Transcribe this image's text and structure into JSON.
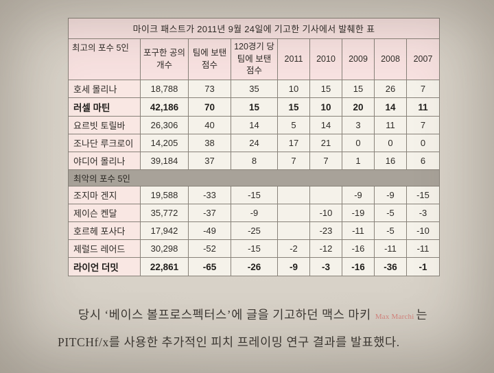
{
  "table": {
    "title": "마이크 패스트가 2011년 9월 24일에 기고한 기사에서 발췌한 표",
    "header": [
      "최고의 포수 5인",
      "포구한 공의 개수",
      "팀에 보탠 점수",
      "120경기 당 팀에 보탠 점수",
      "2011",
      "2010",
      "2009",
      "2008",
      "2007"
    ],
    "top_rows": [
      {
        "name": "호세 몰리나",
        "values": [
          "18,788",
          "73",
          "35",
          "10",
          "15",
          "15",
          "26",
          "7"
        ],
        "bold": false
      },
      {
        "name": "러셀 마틴",
        "values": [
          "42,186",
          "70",
          "15",
          "15",
          "10",
          "20",
          "14",
          "11"
        ],
        "bold": true
      },
      {
        "name": "요르빗 토릴바",
        "values": [
          "26,306",
          "40",
          "14",
          "5",
          "14",
          "3",
          "11",
          "7"
        ],
        "bold": false
      },
      {
        "name": "조나단 루크로이",
        "values": [
          "14,205",
          "38",
          "24",
          "17",
          "21",
          "0",
          "0",
          "0"
        ],
        "bold": false
      },
      {
        "name": "야디어 몰리나",
        "values": [
          "39,184",
          "37",
          "8",
          "7",
          "7",
          "1",
          "16",
          "6"
        ],
        "bold": false
      }
    ],
    "section_label": "최악의 포수 5인",
    "bottom_rows": [
      {
        "name": "조지마 겐지",
        "values": [
          "19,588",
          "-33",
          "-15",
          "",
          "",
          "-9",
          "-9",
          "-15"
        ],
        "bold": false
      },
      {
        "name": "제이슨 켄달",
        "values": [
          "35,772",
          "-37",
          "-9",
          "",
          "-10",
          "-19",
          "-5",
          "-3"
        ],
        "bold": false
      },
      {
        "name": "호르헤 포사다",
        "values": [
          "17,942",
          "-49",
          "-25",
          "",
          "-23",
          "-11",
          "-5",
          "-10"
        ],
        "bold": false
      },
      {
        "name": "제럴드 레어드",
        "values": [
          "30,298",
          "-52",
          "-15",
          "-2",
          "-12",
          "-16",
          "-11",
          "-11"
        ],
        "bold": false
      },
      {
        "name": "라이언 더밋",
        "values": [
          "22,861",
          "-65",
          "-26",
          "-9",
          "-3",
          "-16",
          "-36",
          "-1"
        ],
        "bold": true
      }
    ]
  },
  "body_text": {
    "line1_pre": "당시 ‘베이스 볼프로스펙터스’에 글을 기고하던 맥스 마키",
    "annotation": "Max Marchi",
    "line1_post": "는",
    "line2": "PITCHf/x를 사용한 추가적인 피치 프레이밍 연구 결과를 발표했다.",
    "accent_color": "#d4837c"
  }
}
